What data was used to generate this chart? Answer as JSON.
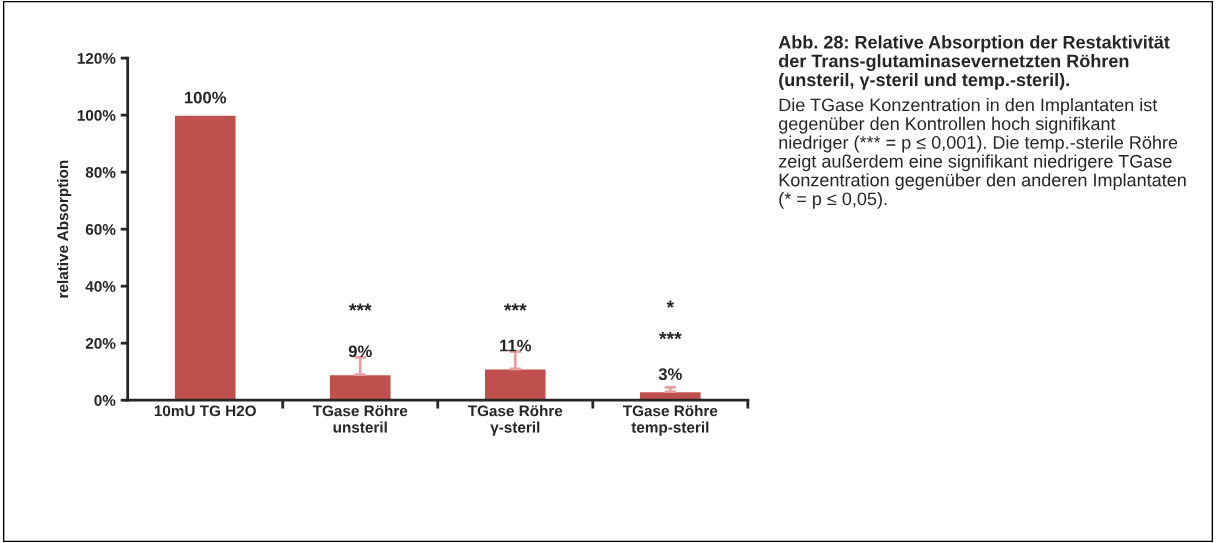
{
  "chart_data": {
    "type": "bar",
    "categories": [
      "10mU TG H2O",
      "TGase Röhre\nunsteril",
      "TGase Röhre\nγ-steril",
      "TGase Röhre\ntemp-steril"
    ],
    "values": [
      100,
      9,
      11,
      3
    ],
    "value_labels": [
      "100%",
      "9%",
      "11%",
      "3%"
    ],
    "errors": [
      null,
      [
        9,
        15
      ],
      [
        11,
        17
      ],
      [
        3,
        4.5
      ]
    ],
    "color": "#c0504d",
    "ylabel": "relative Absorption",
    "ylim": [
      0,
      120
    ],
    "yticks": [
      {
        "value": 0,
        "label": "0%"
      },
      {
        "value": 20,
        "label": "20%"
      },
      {
        "value": 40,
        "label": "40%"
      },
      {
        "value": 60,
        "label": "60%"
      },
      {
        "value": 80,
        "label": "80%"
      },
      {
        "value": 100,
        "label": "100%"
      },
      {
        "value": 120,
        "label": "120%"
      }
    ],
    "grid": false,
    "legend": false,
    "annotations": [
      "***",
      "***",
      "***",
      "*",
      "Abb. 28: Relative Absorption der Restaktivität der Trans-glutaminasevernetzten Röhren (unsteril, γ-steril und temp.-steril).",
      "Die TGase Konzentration in den Implantaten ist gegenüber den Kontrollen hoch signifikant niedriger (*** = p ≤ 0,001). Die temp.-sterile Röhre zeigt außerdem eine signifikant niedrigere TGase Konzentration gegenüber den anderen Implantaten (* = p ≤ 0,05)."
    ]
  }
}
